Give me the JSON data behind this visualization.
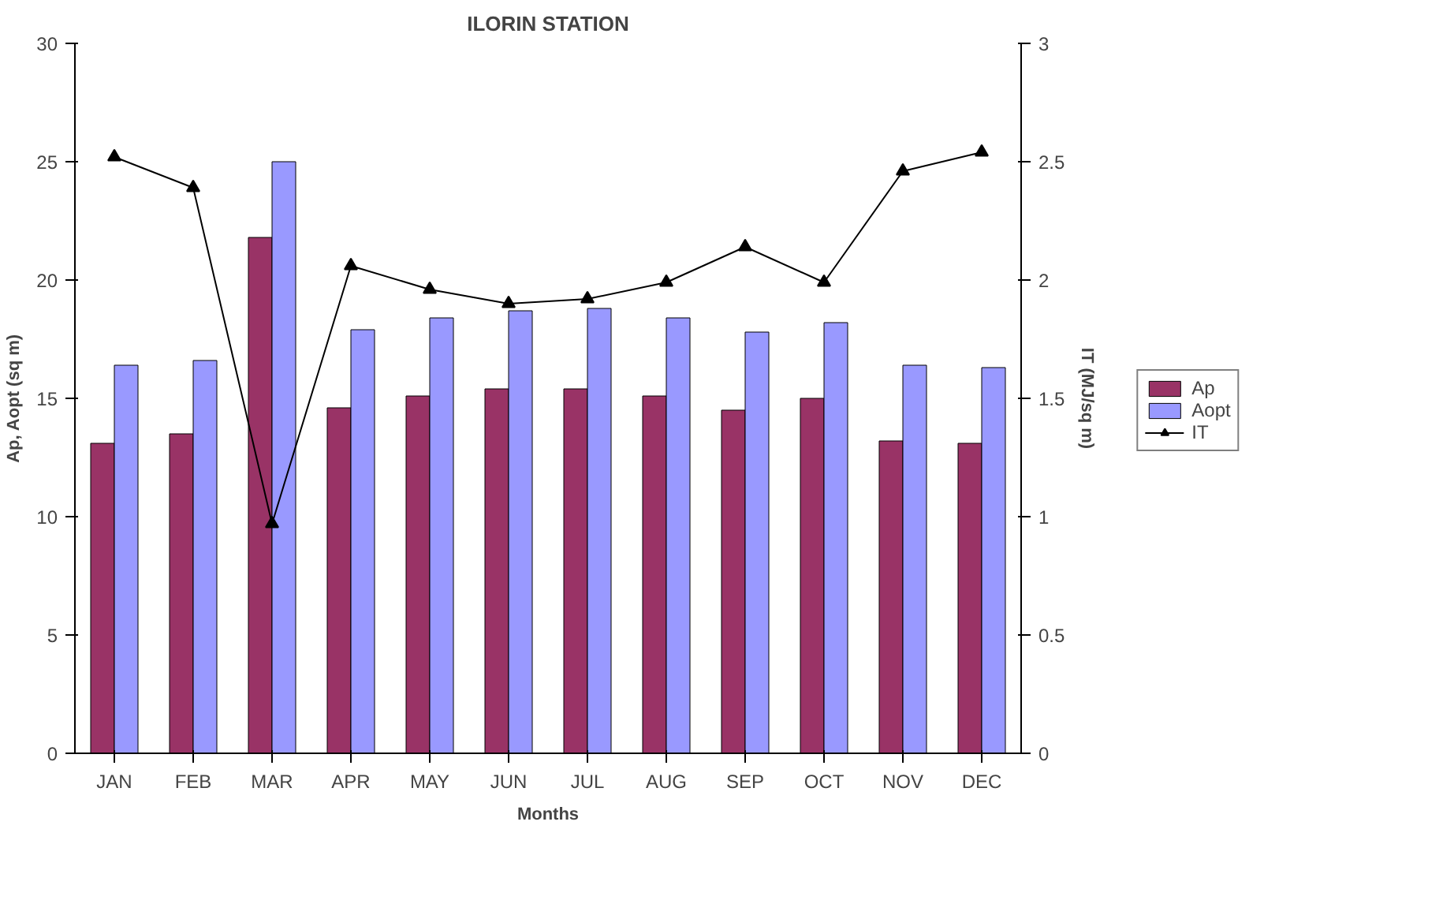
{
  "chart_data": {
    "type": "bar",
    "title": "ILORIN STATION",
    "xlabel": "Months",
    "ylabel": "Ap, Aopt (sq m)",
    "y2label": "IT (MJ/sq m)",
    "categories": [
      "JAN",
      "FEB",
      "MAR",
      "APR",
      "MAY",
      "JUN",
      "JUL",
      "AUG",
      "SEP",
      "OCT",
      "NOV",
      "DEC"
    ],
    "series": [
      {
        "name": "Ap",
        "color": "#993366",
        "values": [
          13.1,
          13.5,
          21.8,
          14.6,
          15.1,
          15.4,
          15.4,
          15.1,
          14.5,
          15.0,
          13.2,
          13.1
        ]
      },
      {
        "name": "Aopt",
        "color": "#9999ff",
        "values": [
          16.4,
          16.6,
          25.0,
          17.9,
          18.4,
          18.7,
          18.8,
          18.4,
          17.8,
          18.2,
          16.4,
          16.3
        ]
      },
      {
        "name": "IT",
        "type": "line",
        "axis": "y2",
        "color": "#000000",
        "marker": "triangle",
        "values": [
          2.52,
          2.39,
          0.97,
          2.06,
          1.96,
          1.9,
          1.92,
          1.99,
          2.14,
          1.99,
          2.46,
          2.54
        ]
      }
    ],
    "ylim": [
      0,
      30
    ],
    "yticks": [
      0,
      5,
      10,
      15,
      20,
      25,
      30
    ],
    "y2lim": [
      0,
      3
    ],
    "y2ticks": [
      0,
      0.5,
      1,
      1.5,
      2,
      2.5,
      3
    ],
    "legend": "right",
    "grid": false
  }
}
